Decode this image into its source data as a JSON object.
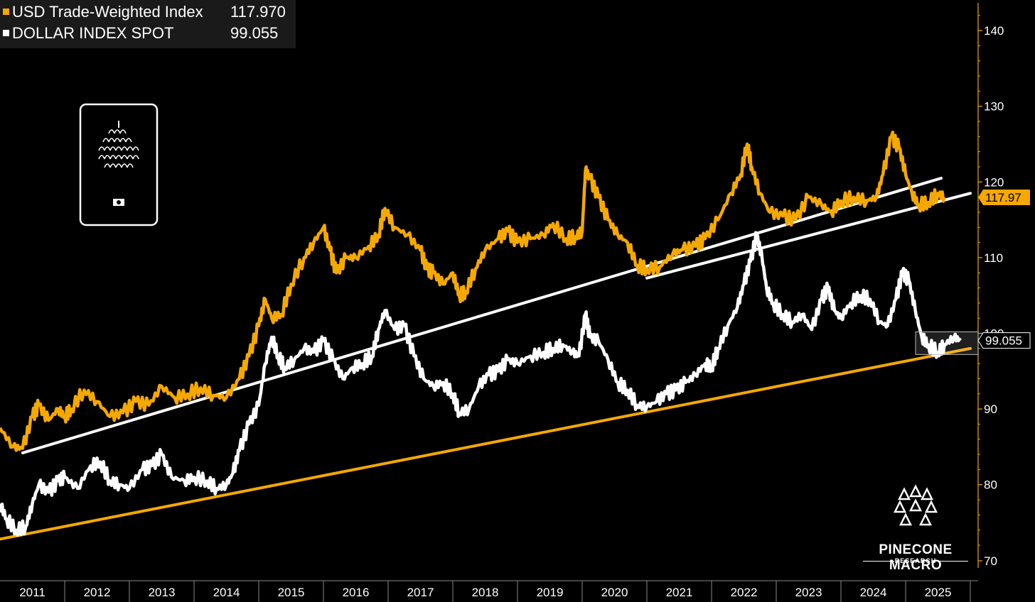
{
  "legend": {
    "items": [
      {
        "label": "USD Trade-Weighted Index",
        "value": "117.970",
        "color": "#f5a800"
      },
      {
        "label": "DOLLAR INDEX SPOT",
        "value": "99.055",
        "color": "#ffffff"
      }
    ]
  },
  "branding": {
    "name": "PINECONE MACRO",
    "subtitle": "RESEARCH",
    "icon": "pinecone-icon"
  },
  "chart_data": {
    "type": "line",
    "ylim": [
      70,
      144
    ],
    "yticks": [
      70,
      80,
      90,
      100,
      110,
      120,
      130,
      140
    ],
    "xlim": [
      2011.0,
      2026.0
    ],
    "xtick_labels": [
      "2011",
      "2012",
      "2013",
      "2014",
      "2015",
      "2016",
      "2017",
      "2018",
      "2019",
      "2020",
      "2021",
      "2022",
      "2023",
      "2024",
      "2025"
    ],
    "grid": false,
    "legend_position": "top-left",
    "series": [
      {
        "name": "USD Trade-Weighted Index",
        "color": "#f5a800",
        "last_value_label": "117.97",
        "points": [
          [
            2011.0,
            87.5
          ],
          [
            2011.2,
            85.0
          ],
          [
            2011.35,
            84.8
          ],
          [
            2011.5,
            89.0
          ],
          [
            2011.6,
            90.5
          ],
          [
            2011.75,
            88.5
          ],
          [
            2011.9,
            90.0
          ],
          [
            2012.0,
            89.0
          ],
          [
            2012.1,
            90.0
          ],
          [
            2012.3,
            92.5
          ],
          [
            2012.5,
            91.0
          ],
          [
            2012.7,
            89.0
          ],
          [
            2012.9,
            89.5
          ],
          [
            2013.1,
            91.0
          ],
          [
            2013.3,
            90.5
          ],
          [
            2013.5,
            93.0
          ],
          [
            2013.7,
            91.5
          ],
          [
            2013.9,
            92.0
          ],
          [
            2014.1,
            92.8
          ],
          [
            2014.3,
            91.8
          ],
          [
            2014.5,
            91.5
          ],
          [
            2014.7,
            94.0
          ],
          [
            2014.85,
            97.0
          ],
          [
            2015.0,
            101.0
          ],
          [
            2015.1,
            104.5
          ],
          [
            2015.2,
            102.0
          ],
          [
            2015.35,
            102.5
          ],
          [
            2015.5,
            106.5
          ],
          [
            2015.7,
            110.0
          ],
          [
            2015.85,
            112.0
          ],
          [
            2016.0,
            114.0
          ],
          [
            2016.1,
            111.0
          ],
          [
            2016.2,
            108.0
          ],
          [
            2016.35,
            110.0
          ],
          [
            2016.5,
            110.0
          ],
          [
            2016.7,
            111.5
          ],
          [
            2016.85,
            113.0
          ],
          [
            2016.95,
            116.5
          ],
          [
            2017.1,
            114.0
          ],
          [
            2017.3,
            113.0
          ],
          [
            2017.5,
            111.0
          ],
          [
            2017.6,
            108.5
          ],
          [
            2017.7,
            108.0
          ],
          [
            2017.85,
            106.5
          ],
          [
            2018.0,
            108.0
          ],
          [
            2018.1,
            105.0
          ],
          [
            2018.2,
            105.5
          ],
          [
            2018.35,
            108.5
          ],
          [
            2018.5,
            111.0
          ],
          [
            2018.7,
            112.5
          ],
          [
            2018.85,
            113.5
          ],
          [
            2019.0,
            112.0
          ],
          [
            2019.2,
            112.5
          ],
          [
            2019.4,
            113.0
          ],
          [
            2019.55,
            114.5
          ],
          [
            2019.75,
            112.5
          ],
          [
            2019.9,
            112.8
          ],
          [
            2020.0,
            113.5
          ],
          [
            2020.05,
            121.5
          ],
          [
            2020.12,
            120.5
          ],
          [
            2020.25,
            118.0
          ],
          [
            2020.4,
            115.0
          ],
          [
            2020.55,
            113.0
          ],
          [
            2020.7,
            112.0
          ],
          [
            2020.85,
            109.0
          ],
          [
            2021.0,
            108.5
          ],
          [
            2021.2,
            108.8
          ],
          [
            2021.4,
            110.5
          ],
          [
            2021.55,
            111.0
          ],
          [
            2021.75,
            111.5
          ],
          [
            2021.9,
            112.5
          ],
          [
            2022.1,
            115.0
          ],
          [
            2022.3,
            118.5
          ],
          [
            2022.45,
            121.0
          ],
          [
            2022.55,
            125.0
          ],
          [
            2022.62,
            122.0
          ],
          [
            2022.75,
            118.5
          ],
          [
            2022.9,
            116.0
          ],
          [
            2023.1,
            115.5
          ],
          [
            2023.3,
            115.0
          ],
          [
            2023.5,
            118.0
          ],
          [
            2023.7,
            117.0
          ],
          [
            2023.85,
            116.0
          ],
          [
            2024.0,
            117.5
          ],
          [
            2024.2,
            118.0
          ],
          [
            2024.4,
            117.5
          ],
          [
            2024.55,
            118.0
          ],
          [
            2024.65,
            121.0
          ],
          [
            2024.78,
            126.0
          ],
          [
            2024.9,
            124.5
          ],
          [
            2025.0,
            121.0
          ],
          [
            2025.1,
            118.5
          ],
          [
            2025.2,
            117.0
          ],
          [
            2025.35,
            117.3
          ],
          [
            2025.5,
            118.5
          ],
          [
            2025.6,
            117.97
          ]
        ]
      },
      {
        "name": "DOLLAR INDEX SPOT",
        "color": "#ffffff",
        "last_value_label": "99.055",
        "points": [
          [
            2011.0,
            77.5
          ],
          [
            2011.1,
            75.5
          ],
          [
            2011.25,
            74.0
          ],
          [
            2011.4,
            74.5
          ],
          [
            2011.5,
            77.5
          ],
          [
            2011.6,
            80.0
          ],
          [
            2011.75,
            79.0
          ],
          [
            2011.9,
            80.5
          ],
          [
            2012.0,
            81.0
          ],
          [
            2012.2,
            79.5
          ],
          [
            2012.4,
            82.5
          ],
          [
            2012.55,
            83.0
          ],
          [
            2012.7,
            80.5
          ],
          [
            2012.85,
            80.0
          ],
          [
            2013.0,
            79.5
          ],
          [
            2013.2,
            82.0
          ],
          [
            2013.35,
            82.5
          ],
          [
            2013.5,
            84.0
          ],
          [
            2013.65,
            81.0
          ],
          [
            2013.85,
            80.5
          ],
          [
            2014.0,
            81.0
          ],
          [
            2014.2,
            80.5
          ],
          [
            2014.35,
            79.5
          ],
          [
            2014.5,
            80.0
          ],
          [
            2014.6,
            81.5
          ],
          [
            2014.7,
            84.5
          ],
          [
            2014.85,
            88.0
          ],
          [
            2015.0,
            90.5
          ],
          [
            2015.1,
            96.0
          ],
          [
            2015.2,
            99.5
          ],
          [
            2015.3,
            97.0
          ],
          [
            2015.4,
            95.5
          ],
          [
            2015.55,
            96.5
          ],
          [
            2015.7,
            98.0
          ],
          [
            2015.85,
            97.5
          ],
          [
            2016.0,
            99.0
          ],
          [
            2016.15,
            96.5
          ],
          [
            2016.3,
            94.0
          ],
          [
            2016.45,
            95.5
          ],
          [
            2016.6,
            96.0
          ],
          [
            2016.75,
            97.0
          ],
          [
            2016.85,
            100.5
          ],
          [
            2016.95,
            103.0
          ],
          [
            2017.1,
            100.5
          ],
          [
            2017.25,
            101.0
          ],
          [
            2017.4,
            97.0
          ],
          [
            2017.55,
            94.0
          ],
          [
            2017.7,
            93.0
          ],
          [
            2017.85,
            93.5
          ],
          [
            2018.0,
            92.0
          ],
          [
            2018.1,
            89.5
          ],
          [
            2018.25,
            90.0
          ],
          [
            2018.4,
            93.0
          ],
          [
            2018.55,
            94.5
          ],
          [
            2018.7,
            95.0
          ],
          [
            2018.85,
            96.5
          ],
          [
            2019.0,
            96.0
          ],
          [
            2019.2,
            97.0
          ],
          [
            2019.4,
            97.5
          ],
          [
            2019.55,
            98.0
          ],
          [
            2019.7,
            98.5
          ],
          [
            2019.85,
            97.5
          ],
          [
            2019.95,
            97.0
          ],
          [
            2020.05,
            102.5
          ],
          [
            2020.12,
            99.5
          ],
          [
            2020.25,
            99.0
          ],
          [
            2020.4,
            96.5
          ],
          [
            2020.55,
            93.5
          ],
          [
            2020.7,
            92.5
          ],
          [
            2020.85,
            90.5
          ],
          [
            2021.0,
            90.3
          ],
          [
            2021.15,
            91.0
          ],
          [
            2021.3,
            92.0
          ],
          [
            2021.45,
            92.5
          ],
          [
            2021.6,
            93.5
          ],
          [
            2021.75,
            94.5
          ],
          [
            2021.9,
            96.0
          ],
          [
            2022.0,
            95.5
          ],
          [
            2022.1,
            98.0
          ],
          [
            2022.25,
            101.0
          ],
          [
            2022.4,
            103.5
          ],
          [
            2022.5,
            106.5
          ],
          [
            2022.6,
            109.5
          ],
          [
            2022.7,
            113.0
          ],
          [
            2022.78,
            110.0
          ],
          [
            2022.85,
            106.0
          ],
          [
            2022.95,
            104.0
          ],
          [
            2023.1,
            102.5
          ],
          [
            2023.25,
            101.5
          ],
          [
            2023.4,
            102.5
          ],
          [
            2023.55,
            100.5
          ],
          [
            2023.7,
            104.5
          ],
          [
            2023.8,
            106.0
          ],
          [
            2023.9,
            103.0
          ],
          [
            2024.0,
            102.0
          ],
          [
            2024.15,
            104.0
          ],
          [
            2024.3,
            105.0
          ],
          [
            2024.45,
            104.5
          ],
          [
            2024.6,
            101.5
          ],
          [
            2024.72,
            101.0
          ],
          [
            2024.85,
            104.5
          ],
          [
            2024.95,
            108.0
          ],
          [
            2025.05,
            107.0
          ],
          [
            2025.15,
            103.0
          ],
          [
            2025.25,
            99.5
          ],
          [
            2025.35,
            98.5
          ],
          [
            2025.5,
            97.5
          ],
          [
            2025.6,
            98.5
          ],
          [
            2025.75,
            99.5
          ],
          [
            2025.85,
            99.055
          ]
        ]
      }
    ],
    "trendlines": [
      {
        "color": "#f5a800",
        "from": [
          2011.0,
          72.8
        ],
        "to": [
          2026.0,
          98.0
        ]
      },
      {
        "color": "#ffffff",
        "from": [
          2011.35,
          84.2
        ],
        "to": [
          2025.55,
          120.5
        ]
      },
      {
        "color": "#ffffff",
        "from": [
          2021.0,
          107.3
        ],
        "to": [
          2026.0,
          118.5
        ]
      }
    ]
  }
}
